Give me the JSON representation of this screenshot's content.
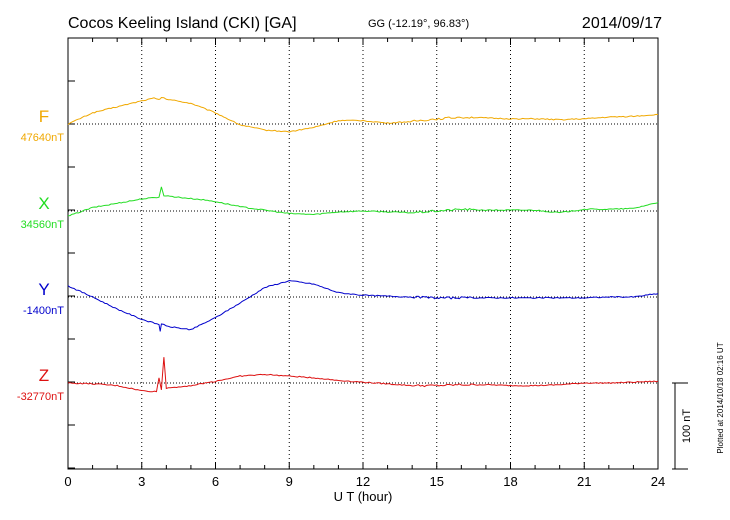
{
  "header": {
    "station": "Cocos Keeling Island (CKI)  [GA]",
    "coords": "GG (-12.19°,  96.83°)",
    "date": "2014/09/17"
  },
  "footer": {
    "plotted": "Plotted at 2014/10/18 02:16 UT"
  },
  "chart_data": {
    "type": "line",
    "xlabel": "U T (hour)",
    "xlim": [
      0,
      24
    ],
    "xticks": [
      0,
      3,
      6,
      9,
      12,
      15,
      18,
      21,
      24
    ],
    "scale_bar": {
      "label": "100 nT",
      "value_nT": 100
    },
    "series": [
      {
        "name": "F",
        "baseline_label": "47640nT",
        "baseline_nT": 47640,
        "color": "#f0a800",
        "points": [
          [
            0,
            0
          ],
          [
            1,
            13
          ],
          [
            2,
            20
          ],
          [
            3,
            27
          ],
          [
            3.5,
            30
          ],
          [
            3.7,
            28
          ],
          [
            3.8,
            31
          ],
          [
            4,
            29
          ],
          [
            5,
            24
          ],
          [
            6,
            13
          ],
          [
            7,
            -1
          ],
          [
            8,
            -7
          ],
          [
            9,
            -9
          ],
          [
            10,
            -4
          ],
          [
            11,
            4
          ],
          [
            12,
            4
          ],
          [
            13,
            1
          ],
          [
            14,
            3
          ],
          [
            15,
            6
          ],
          [
            16,
            8
          ],
          [
            17,
            7
          ],
          [
            18,
            6
          ],
          [
            19,
            6
          ],
          [
            20,
            5
          ],
          [
            21,
            6
          ],
          [
            22,
            8
          ],
          [
            23,
            9
          ],
          [
            24,
            11
          ]
        ]
      },
      {
        "name": "X",
        "baseline_label": "34560nT",
        "baseline_nT": 34560,
        "color": "#22dd22",
        "points": [
          [
            0,
            -6
          ],
          [
            1,
            4
          ],
          [
            2,
            9
          ],
          [
            3,
            14
          ],
          [
            3.7,
            16
          ],
          [
            3.8,
            28
          ],
          [
            3.9,
            18
          ],
          [
            4.5,
            16
          ],
          [
            5.5,
            13
          ],
          [
            6,
            11
          ],
          [
            7,
            5
          ],
          [
            8,
            1
          ],
          [
            9,
            -3
          ],
          [
            10,
            -4
          ],
          [
            11,
            -1
          ],
          [
            12,
            0
          ],
          [
            13,
            -1
          ],
          [
            14,
            -2
          ],
          [
            15,
            0
          ],
          [
            16,
            2
          ],
          [
            17,
            1
          ],
          [
            18,
            1
          ],
          [
            19,
            1
          ],
          [
            20,
            -2
          ],
          [
            21,
            2
          ],
          [
            22,
            2
          ],
          [
            23,
            3
          ],
          [
            24,
            10
          ]
        ]
      },
      {
        "name": "Y",
        "baseline_label": "-1400nT",
        "baseline_nT": -1400,
        "color": "#0000cc",
        "points": [
          [
            0,
            13
          ],
          [
            1,
            0
          ],
          [
            2,
            -14
          ],
          [
            3,
            -26
          ],
          [
            3.7,
            -32
          ],
          [
            3.75,
            -40
          ],
          [
            3.8,
            -31
          ],
          [
            4,
            -34
          ],
          [
            5,
            -38
          ],
          [
            6,
            -24
          ],
          [
            7,
            -7
          ],
          [
            8,
            11
          ],
          [
            9,
            19
          ],
          [
            10,
            15
          ],
          [
            11,
            5
          ],
          [
            12,
            2
          ],
          [
            13,
            1
          ],
          [
            14,
            0
          ],
          [
            15,
            -1
          ],
          [
            16,
            -1
          ],
          [
            17,
            -1
          ],
          [
            18,
            -1
          ],
          [
            19,
            -1
          ],
          [
            20,
            -1
          ],
          [
            21,
            -1
          ],
          [
            22,
            0
          ],
          [
            23,
            0
          ],
          [
            24,
            4
          ]
        ]
      },
      {
        "name": "Z",
        "baseline_label": "-32770nT",
        "baseline_nT": -32770,
        "color": "#dd1111",
        "points": [
          [
            0,
            0
          ],
          [
            1,
            -1
          ],
          [
            2,
            -3
          ],
          [
            3,
            -9
          ],
          [
            3.6,
            -10
          ],
          [
            3.7,
            6
          ],
          [
            3.8,
            -8
          ],
          [
            3.9,
            30
          ],
          [
            4,
            -6
          ],
          [
            5,
            -3
          ],
          [
            6,
            2
          ],
          [
            7,
            8
          ],
          [
            8,
            10
          ],
          [
            9,
            8
          ],
          [
            10,
            6
          ],
          [
            11,
            3
          ],
          [
            12,
            1
          ],
          [
            13,
            -1
          ],
          [
            14,
            -3
          ],
          [
            15,
            -3
          ],
          [
            16,
            -2
          ],
          [
            17,
            -2
          ],
          [
            18,
            -3
          ],
          [
            19,
            -3
          ],
          [
            20,
            -2
          ],
          [
            21,
            0
          ],
          [
            22,
            0
          ],
          [
            23,
            1
          ],
          [
            24,
            2
          ]
        ]
      }
    ]
  }
}
